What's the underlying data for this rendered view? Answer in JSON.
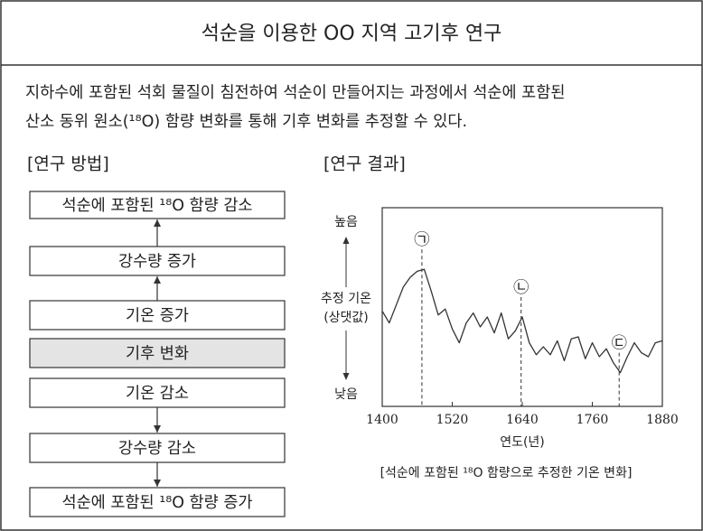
{
  "header": {
    "title": "석순을 이용한 OO 지역 고기후 연구"
  },
  "intro": [
    "지하수에 포함된 석회 물질이 침전하여 석순이 만들어지는 과정에서 석순에 포함된",
    "산소 동위 원소(¹⁸O) 함량 변화를 통해 기후 변화를 추정할 수 있다."
  ],
  "method": {
    "heading": "[연구 방법]",
    "steps": [
      "석순에 포함된 ¹⁸O 함량 감소",
      "강수량 증가",
      "기온 증가",
      "기후 변화",
      "기온 감소",
      "강수량 감소",
      "석순에 포함된 ¹⁸O 함량 증가"
    ],
    "highlighted": 3
  },
  "result": {
    "heading": "[연구 결과]",
    "caption": "[석순에 포함된 ¹⁸O 함량으로 추정한 기온 변화]"
  },
  "chart_data": {
    "type": "line",
    "xlabel": "연도(년)",
    "ylabel": [
      "추정 기온",
      "(상댓값)"
    ],
    "y_high": "높음",
    "y_low": "낮음",
    "color": "#333333",
    "x": [
      1400,
      1412,
      1424,
      1436,
      1448,
      1460,
      1472,
      1484,
      1496,
      1508,
      1520,
      1532,
      1544,
      1556,
      1568,
      1580,
      1592,
      1604,
      1616,
      1628,
      1640,
      1652,
      1664,
      1676,
      1688,
      1700,
      1712,
      1724,
      1736,
      1748,
      1760,
      1772,
      1784,
      1796,
      1808,
      1820,
      1832,
      1844,
      1856,
      1868,
      1880
    ],
    "values": [
      48,
      42,
      51,
      60,
      65,
      68,
      69,
      58,
      46,
      49,
      39,
      32,
      42,
      47,
      40,
      45,
      37,
      47,
      34,
      38,
      45,
      32,
      26,
      30,
      26,
      33,
      23,
      34,
      35,
      24,
      32,
      25,
      29,
      22,
      17,
      25,
      32,
      27,
      25,
      32,
      33
    ],
    "xlim": [
      1400,
      1880
    ],
    "ylim": [
      0,
      100
    ],
    "xticks": [
      1400,
      1520,
      1640,
      1760,
      1880
    ],
    "annotations": [
      {
        "label": "㉠",
        "x": 1468
      },
      {
        "label": "㉡",
        "x": 1638
      },
      {
        "label": "㉢",
        "x": 1806
      }
    ]
  }
}
